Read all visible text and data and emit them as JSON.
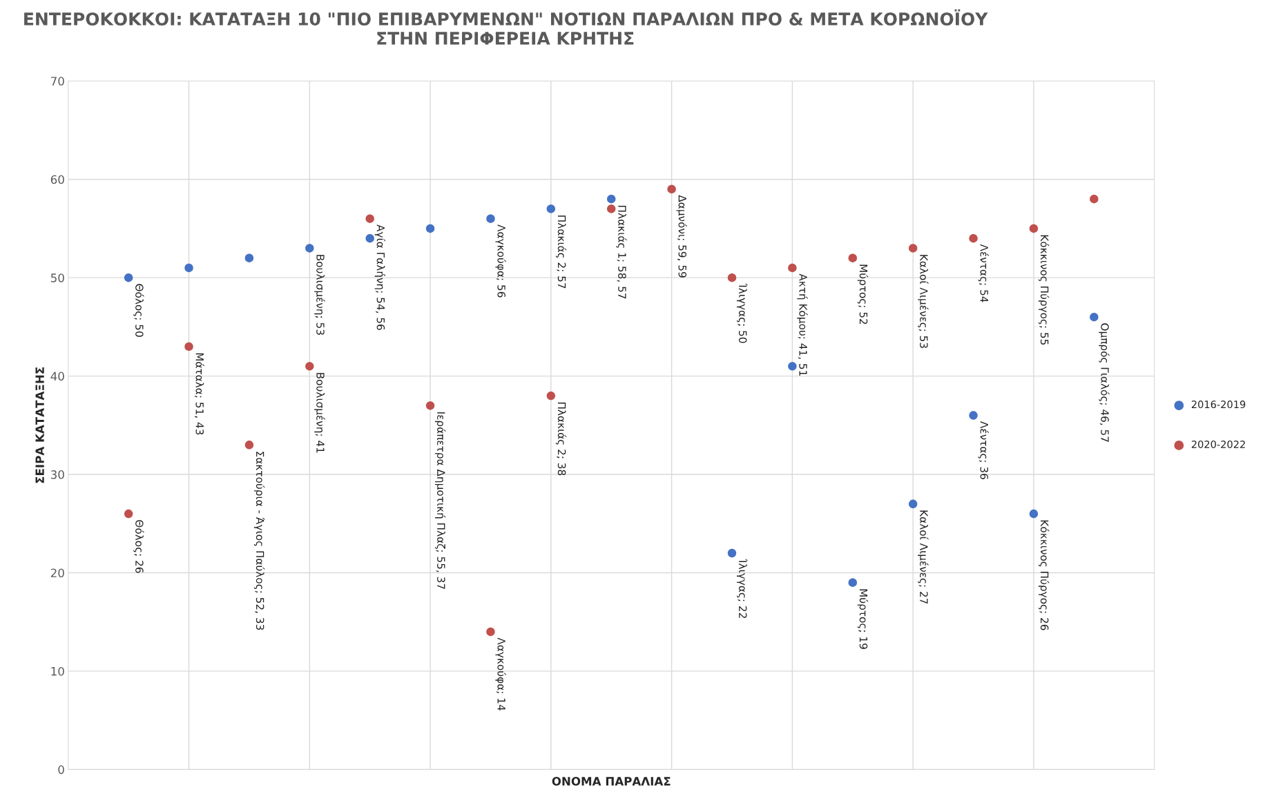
{
  "chart_data": {
    "type": "scatter",
    "title": "ΕΝΤΕΡΟΚΟΚΚΟΙ: ΚΑΤΑΤΑΞΗ 10 \"ΠΙΟ ΕΠΙΒΑΡΥΜΕΝΩΝ\" ΝΟΤΙΩΝ ΠΑΡΑΛΙΩΝ ΠΡΟ & ΜΕΤΑ ΚΟΡΩΝΟΪΟΥ\nΣΤΗΝ ΠΕΡΙΦΕΡΕΙΑ ΚΡΗΤΗΣ",
    "xlabel": "ΟΝΟΜΑ ΠΑΡΑΛΙΑΣ",
    "ylabel": "ΣΕΙΡΑ ΚΑΤΑΤΑΞΗΣ",
    "categories": [
      null,
      null,
      null,
      null,
      null,
      null,
      null,
      null,
      null,
      null,
      null,
      null,
      null,
      null,
      null,
      null,
      null
    ],
    "ylim": [
      0,
      70
    ],
    "yticks": [
      0,
      10,
      20,
      30,
      40,
      50,
      60,
      70
    ],
    "grid": true,
    "legend": "right",
    "marker": "circle",
    "series": [
      {
        "name": "2016-2019",
        "color": "#4472c4",
        "values": [
          50,
          51,
          52,
          53,
          54,
          55,
          56,
          57,
          58,
          null,
          22,
          41,
          19,
          27,
          36,
          26,
          46
        ],
        "value_labels": [
          "Θόλος; 50",
          null,
          null,
          "Βουλισμένη; 53",
          null,
          null,
          "Λαγκούφα; 56",
          "Πλακιάς 2; 57",
          "Πλακιάς 1; 58, 57",
          null,
          "Ίλιγγας; 22",
          null,
          "Μύρτος; 19",
          "Καλοί Λιμένες; 27",
          "Λέντας; 36",
          "Κόκκινος Πύργος; 26",
          "Ομπρός Γιαλός; 46, 57"
        ]
      },
      {
        "name": "2020-2022",
        "color": "#c0504d",
        "values": [
          26,
          43,
          33,
          41,
          56,
          37,
          14,
          38,
          57,
          59,
          50,
          51,
          52,
          53,
          54,
          55,
          58
        ],
        "value_labels": [
          "Θόλος; 26",
          "Μάταλα; 51, 43",
          "Σακτούρια - Άγιος Παύλος; 52, 33",
          "Βουλισμένη; 41",
          "Αγία Γαλήνη; 54, 56",
          "Ιεράπετρα Δημοτική Πλαζ; 55, 37",
          "Λαγκούφα; 14",
          "Πλακιάς 2; 38",
          null,
          "Δαμνόνι; 59, 59",
          "Ίλιγγας; 50",
          "Ακτή Κόμου; 41, 51",
          "Μύρτος; 52",
          "Καλοί Λιμένες; 53",
          "Λέντας; 54",
          "Κόκκινος Πύργος; 55",
          null
        ]
      }
    ]
  }
}
